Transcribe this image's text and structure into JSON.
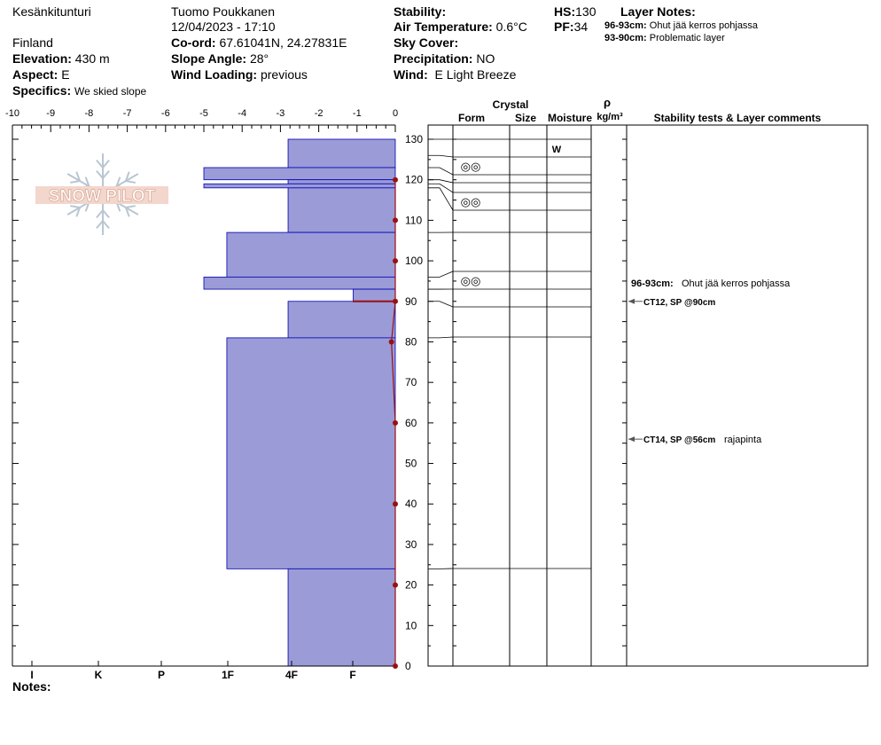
{
  "header": {
    "location": "Kesänkitunturi",
    "country": "Finland",
    "elevation_label": "Elevation:",
    "elevation": "430 m",
    "aspect_label": "Aspect:",
    "aspect": "E",
    "specifics_label": "Specifics:",
    "specifics": "We skied slope",
    "observer": "Tuomo Poukkanen",
    "datetime": "12/04/2023 - 17:10",
    "coord_label": "Co-ord:",
    "coord": "67.61041N, 24.27831E",
    "slope_label": "Slope Angle:",
    "slope": "28°",
    "wind_loading_label": "Wind Loading:",
    "wind_loading": "previous",
    "stability_label": "Stability:",
    "stability": "",
    "air_temp_label": "Air Temperature:",
    "air_temp": "0.6°C",
    "sky_label": "Sky Cover:",
    "sky": "",
    "precip_label": "Precipitation:",
    "precip": "NO",
    "wind_label": "Wind:",
    "wind": "E Light Breeze",
    "hs_label": "HS:",
    "hs": "130",
    "pf_label": "PF:",
    "pf": "34",
    "layer_notes_label": "Layer Notes:",
    "layer_notes": [
      {
        "range": "96-93cm:",
        "text": "Ohut jää kerros pohjassa"
      },
      {
        "range": "93-90cm:",
        "text": "Problematic layer"
      }
    ],
    "notes_label": "Notes:"
  },
  "logo": {
    "text": "SNOW PILOT"
  },
  "chart_data": {
    "type": "snow-profile",
    "temp_axis": {
      "ticks": [
        "-10",
        "-9",
        "-8",
        "-7",
        "-6",
        "-5",
        "-4",
        "-3",
        "-2",
        "-1",
        "0"
      ],
      "range": [
        -10,
        0
      ]
    },
    "height_axis": {
      "ticks": [
        "130",
        "120",
        "110",
        "100",
        "90",
        "80",
        "70",
        "60",
        "50",
        "40",
        "30",
        "20",
        "10",
        "0"
      ],
      "range": [
        0,
        130
      ]
    },
    "hardness_axis": {
      "labels": [
        "I",
        "K",
        "P",
        "1F",
        "4F",
        "F"
      ]
    },
    "hardness_scale_note": "layer width in temperature-axis units",
    "hardness_layers": [
      {
        "top": 130,
        "bottom": 123,
        "width": 2.8
      },
      {
        "top": 123,
        "bottom": 120,
        "width": 5.0
      },
      {
        "top": 120,
        "bottom": 119,
        "width": 2.8
      },
      {
        "top": 119,
        "bottom": 118,
        "width": 5.0
      },
      {
        "top": 118,
        "bottom": 107,
        "width": 2.8
      },
      {
        "top": 107,
        "bottom": 96,
        "width": 4.4
      },
      {
        "top": 96,
        "bottom": 93,
        "width": 5.0
      },
      {
        "top": 93,
        "bottom": 90,
        "width": 1.1
      },
      {
        "top": 90,
        "bottom": 81,
        "width": 2.8
      },
      {
        "top": 81,
        "bottom": 24,
        "width": 4.4
      },
      {
        "top": 24,
        "bottom": 0,
        "width": 2.8
      }
    ],
    "temperature_profile": [
      {
        "height": 120,
        "temp": 0.0
      },
      {
        "height": 110,
        "temp": 0.0
      },
      {
        "height": 100,
        "temp": 0.0
      },
      {
        "height": 90,
        "temp": 0.0
      },
      {
        "height": 80,
        "temp": -0.1
      },
      {
        "height": 60,
        "temp": 0.0
      },
      {
        "height": 40,
        "temp": 0.0
      },
      {
        "height": 20,
        "temp": 0.0
      },
      {
        "height": 0,
        "temp": 0.0
      }
    ],
    "columns": {
      "crystal": "Crystal",
      "form": "Form",
      "size": "Size",
      "moisture": "Moisture",
      "rho": "ρ",
      "density_unit": "kg/m³",
      "stability": "Stability tests & Layer comments"
    },
    "layer_boundaries": [
      130,
      126,
      123,
      120,
      119,
      118,
      107,
      96,
      93,
      90,
      81,
      24,
      0
    ],
    "crystal_rows": [
      {
        "top": 126,
        "bottom": 123,
        "form": "◎◎"
      },
      {
        "top": 118,
        "bottom": 107,
        "form": "◎◎"
      },
      {
        "top": 96,
        "bottom": 93,
        "form": "◎◎"
      }
    ],
    "moisture_rows": [
      {
        "top": 130,
        "bottom": 126,
        "value": "W"
      }
    ],
    "comments": [
      {
        "height": 94.5,
        "range": "96-93cm:",
        "text": "Ohut jää kerros pohjassa",
        "arrow": false
      },
      {
        "height": 90,
        "range": "CT12, SP @90cm",
        "text": "",
        "arrow": true
      },
      {
        "height": 56,
        "range": "CT14, SP @56cm",
        "text": "rajapinta",
        "arrow": true
      }
    ],
    "colors": {
      "layer_fill": "#9b9bd8",
      "layer_stroke": "#0000b0",
      "temp_line": "#9a1010"
    }
  }
}
